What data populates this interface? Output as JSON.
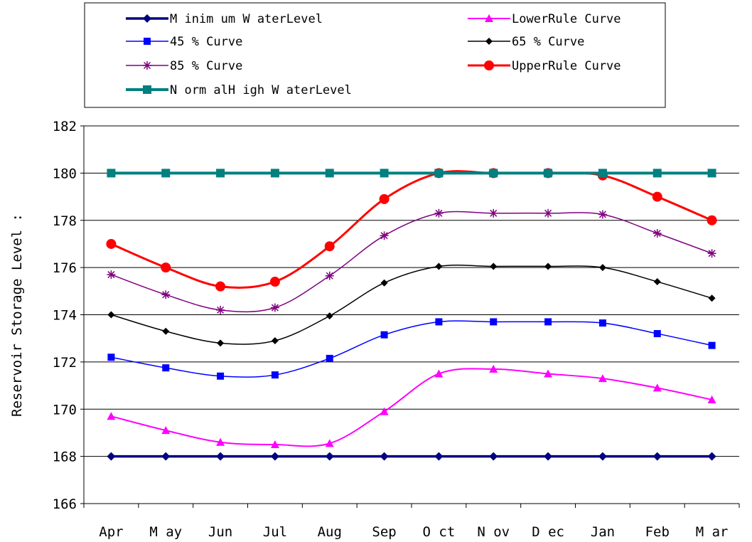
{
  "chart_data": {
    "type": "line",
    "title": "",
    "xlabel": "",
    "ylabel": "Reservoir Storage Level :",
    "ylim": [
      166,
      182
    ],
    "yticks": [
      166,
      168,
      170,
      172,
      174,
      176,
      178,
      180,
      182
    ],
    "grid": true,
    "legend_position": "top",
    "categories": [
      "Apr",
      "May",
      "Jun",
      "Jul",
      "Aug",
      "Sep",
      "Oct",
      "Nov",
      "Dec",
      "Jan",
      "Feb",
      "Mar"
    ],
    "series": [
      {
        "name": "Minimum Water Level",
        "color": "#000080",
        "marker": "diamond",
        "width": 3.5,
        "values": [
          168,
          168,
          168,
          168,
          168,
          168,
          168,
          168,
          168,
          168,
          168,
          168
        ]
      },
      {
        "name": "Lower Rule Curve",
        "color": "#ff00ff",
        "marker": "triangle",
        "width": 2,
        "values": [
          169.7,
          169.1,
          168.6,
          168.5,
          168.55,
          169.9,
          171.5,
          171.7,
          171.5,
          171.3,
          170.9,
          170.4
        ]
      },
      {
        "name": "45 % Curve",
        "color": "#0000ff",
        "marker": "square",
        "width": 1.5,
        "values": [
          172.2,
          171.75,
          171.4,
          171.45,
          172.15,
          173.15,
          173.7,
          173.7,
          173.7,
          173.65,
          173.2,
          172.7
        ]
      },
      {
        "name": "65 % Curve",
        "color": "#000000",
        "marker": "diamond",
        "width": 1.5,
        "values": [
          174.0,
          173.3,
          172.8,
          172.9,
          173.95,
          175.35,
          176.05,
          176.05,
          176.05,
          176.0,
          175.4,
          174.7
        ]
      },
      {
        "name": "85 % Curve",
        "color": "#800080",
        "marker": "star",
        "width": 1.5,
        "values": [
          175.7,
          174.85,
          174.2,
          174.3,
          175.65,
          177.35,
          178.3,
          178.3,
          178.3,
          178.25,
          177.45,
          176.6
        ]
      },
      {
        "name": "Upper Rule Curve",
        "color": "#ff0000",
        "marker": "circle",
        "width": 3,
        "values": [
          177.0,
          176.0,
          175.2,
          175.4,
          176.9,
          178.9,
          180.0,
          180.0,
          180.0,
          179.9,
          179.0,
          178.0
        ]
      },
      {
        "name": "Normal High Water Level",
        "color": "#008080",
        "marker": "square",
        "width": 4,
        "values": [
          180,
          180,
          180,
          180,
          180,
          180,
          180,
          180,
          180,
          180,
          180,
          180
        ]
      }
    ],
    "legend_display": [
      "M inim um  W aterLevel",
      "LowerRule Curve",
      "45 %  Curve",
      "65 %  Curve",
      "85 %  Curve",
      "UpperRule Curve",
      "N orm alH igh W aterLevel"
    ],
    "category_display": [
      "Apr",
      "M ay",
      "Jun",
      "Jul",
      "Aug",
      "Sep",
      "O ct",
      "N ov",
      "D ec",
      "Jan",
      "Feb",
      "M ar"
    ]
  }
}
